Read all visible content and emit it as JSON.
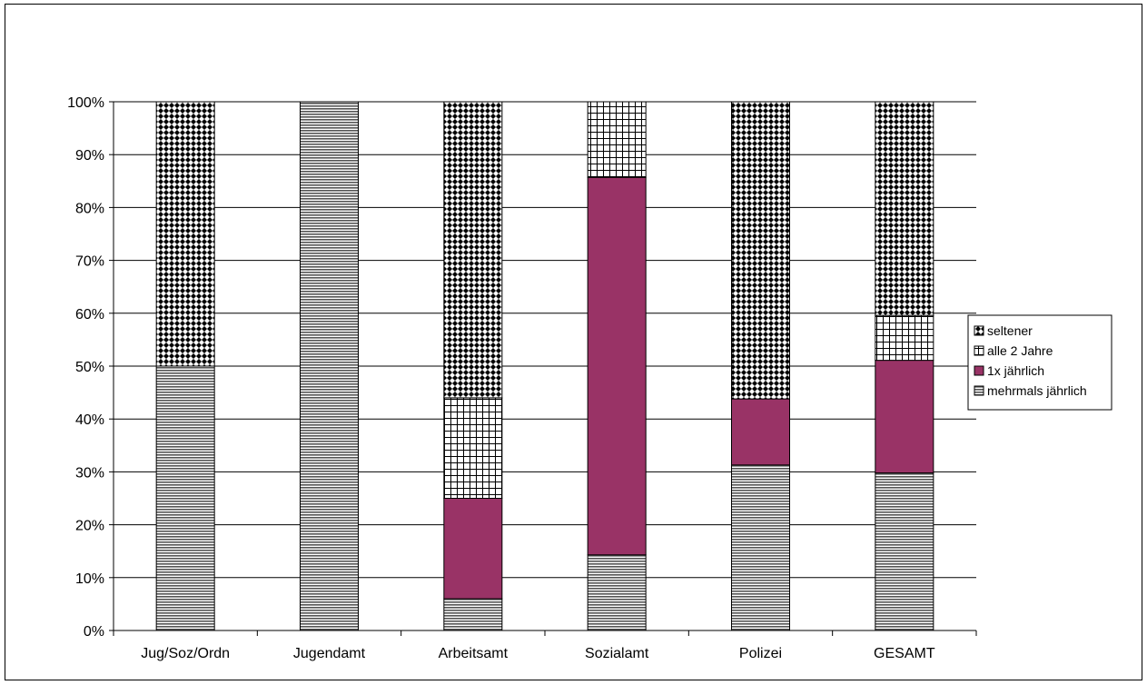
{
  "chart_data": {
    "type": "bar",
    "stacked": true,
    "percent_stacked": true,
    "categories": [
      "Jug/Soz/Ordn",
      "Jugendamt",
      "Arbeitsamt",
      "Sozialamt",
      "Polizei",
      "GESAMT"
    ],
    "series": [
      {
        "name": "mehrmals jährlich",
        "values": [
          50,
          100,
          6,
          14.3,
          31.3,
          29.8
        ],
        "pattern": "horizontal-lines"
      },
      {
        "name": "1x jährlich",
        "values": [
          0,
          0,
          19,
          71.4,
          12.5,
          21.3
        ],
        "color": "#993366"
      },
      {
        "name": "alle 2 Jahre",
        "values": [
          0,
          0,
          19,
          14.3,
          0,
          8.5
        ],
        "pattern": "grid"
      },
      {
        "name": "seltener",
        "values": [
          50,
          0,
          56,
          0,
          56.2,
          40.4
        ],
        "pattern": "dots"
      }
    ],
    "legend_order": [
      "seltener",
      "alle 2 Jahre",
      "1x jährlich",
      "mehrmals jährlich"
    ],
    "yticks": [
      "0%",
      "10%",
      "20%",
      "30%",
      "40%",
      "50%",
      "60%",
      "70%",
      "80%",
      "90%",
      "100%"
    ],
    "ylim": [
      0,
      100
    ],
    "grid": true,
    "legend_position": "right"
  }
}
